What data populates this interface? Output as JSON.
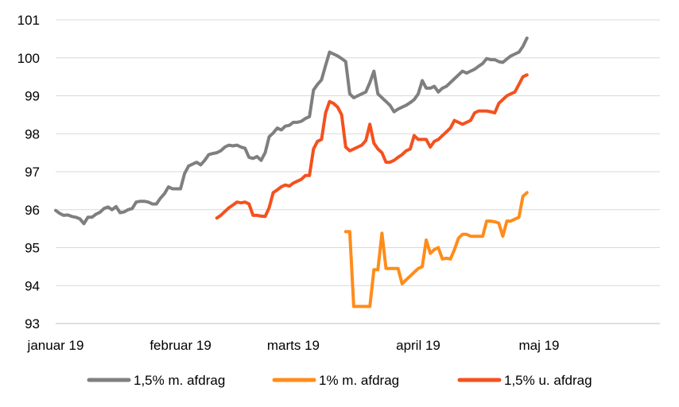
{
  "chart_data": {
    "type": "line",
    "title": "",
    "xlabel": "",
    "ylabel": "",
    "ylim": [
      93,
      101
    ],
    "yticks": [
      "93",
      "94",
      "95",
      "96",
      "97",
      "98",
      "99",
      "100",
      "101"
    ],
    "grid": true,
    "legend_position": "bottom",
    "x_categories": [
      {
        "label": "januar 19",
        "day": 0
      },
      {
        "label": "februar 19",
        "day": 31
      },
      {
        "label": "marts 19",
        "day": 59
      },
      {
        "label": "april 19",
        "day": 90
      },
      {
        "label": "maj 19",
        "day": 120
      }
    ],
    "xlim_days": [
      0,
      150
    ],
    "series": [
      {
        "name": "1,5% m. afdrag",
        "color": "#7f7f7f",
        "points": [
          [
            0,
            95.98
          ],
          [
            1,
            95.9
          ],
          [
            2,
            95.85
          ],
          [
            3,
            95.86
          ],
          [
            4,
            95.82
          ],
          [
            5,
            95.8
          ],
          [
            6,
            95.76
          ],
          [
            7,
            95.63
          ],
          [
            8,
            95.8
          ],
          [
            9,
            95.8
          ],
          [
            10,
            95.88
          ],
          [
            11,
            95.93
          ],
          [
            12,
            96.03
          ],
          [
            13,
            96.07
          ],
          [
            14,
            96.0
          ],
          [
            15,
            96.08
          ],
          [
            16,
            95.92
          ],
          [
            17,
            95.94
          ],
          [
            18,
            96.0
          ],
          [
            19,
            96.03
          ],
          [
            20,
            96.2
          ],
          [
            21,
            96.22
          ],
          [
            22,
            96.22
          ],
          [
            23,
            96.2
          ],
          [
            24,
            96.15
          ],
          [
            25,
            96.15
          ],
          [
            26,
            96.3
          ],
          [
            27,
            96.42
          ],
          [
            28,
            96.6
          ],
          [
            29,
            96.55
          ],
          [
            30,
            96.55
          ],
          [
            31,
            96.55
          ],
          [
            32,
            96.95
          ],
          [
            33,
            97.15
          ],
          [
            34,
            97.2
          ],
          [
            35,
            97.25
          ],
          [
            36,
            97.18
          ],
          [
            37,
            97.3
          ],
          [
            38,
            97.45
          ],
          [
            39,
            97.48
          ],
          [
            40,
            97.5
          ],
          [
            41,
            97.55
          ],
          [
            42,
            97.65
          ],
          [
            43,
            97.7
          ],
          [
            44,
            97.68
          ],
          [
            45,
            97.7
          ],
          [
            46,
            97.65
          ],
          [
            47,
            97.62
          ],
          [
            48,
            97.38
          ],
          [
            49,
            97.35
          ],
          [
            50,
            97.4
          ],
          [
            51,
            97.3
          ],
          [
            52,
            97.5
          ],
          [
            53,
            97.92
          ],
          [
            54,
            98.02
          ],
          [
            55,
            98.15
          ],
          [
            56,
            98.1
          ],
          [
            57,
            98.2
          ],
          [
            58,
            98.22
          ],
          [
            59,
            98.3
          ],
          [
            60,
            98.3
          ],
          [
            61,
            98.33
          ],
          [
            62,
            98.4
          ],
          [
            63,
            98.45
          ],
          [
            64,
            99.15
          ],
          [
            65,
            99.3
          ],
          [
            66,
            99.42
          ],
          [
            67,
            99.8
          ],
          [
            68,
            100.15
          ],
          [
            69,
            100.1
          ],
          [
            70,
            100.05
          ],
          [
            71,
            99.98
          ],
          [
            72,
            99.9
          ],
          [
            73,
            99.05
          ],
          [
            74,
            98.95
          ],
          [
            75,
            99.0
          ],
          [
            76,
            99.05
          ],
          [
            77,
            99.1
          ],
          [
            78,
            99.35
          ],
          [
            79,
            99.65
          ],
          [
            80,
            99.05
          ],
          [
            81,
            98.95
          ],
          [
            82,
            98.85
          ],
          [
            83,
            98.75
          ],
          [
            84,
            98.58
          ],
          [
            85,
            98.65
          ],
          [
            86,
            98.7
          ],
          [
            87,
            98.75
          ],
          [
            88,
            98.82
          ],
          [
            89,
            98.9
          ],
          [
            90,
            99.05
          ],
          [
            91,
            99.4
          ],
          [
            92,
            99.2
          ],
          [
            93,
            99.2
          ],
          [
            94,
            99.25
          ],
          [
            95,
            99.1
          ],
          [
            96,
            99.2
          ],
          [
            97,
            99.25
          ],
          [
            98,
            99.35
          ],
          [
            99,
            99.45
          ],
          [
            100,
            99.55
          ],
          [
            101,
            99.65
          ],
          [
            102,
            99.6
          ],
          [
            103,
            99.65
          ],
          [
            104,
            99.7
          ],
          [
            105,
            99.78
          ],
          [
            106,
            99.85
          ],
          [
            107,
            99.98
          ],
          [
            108,
            99.95
          ],
          [
            109,
            99.95
          ],
          [
            110,
            99.9
          ],
          [
            111,
            99.88
          ],
          [
            112,
            99.97
          ],
          [
            113,
            100.05
          ],
          [
            114,
            100.1
          ],
          [
            115,
            100.15
          ],
          [
            116,
            100.3
          ],
          [
            117,
            100.52
          ]
        ]
      },
      {
        "name": "1% m. afdrag",
        "color": "#ff8c1a",
        "points": [
          [
            72,
            95.42
          ],
          [
            73,
            95.42
          ],
          [
            74,
            93.45
          ],
          [
            75,
            93.45
          ],
          [
            76,
            93.45
          ],
          [
            77,
            93.45
          ],
          [
            78,
            93.45
          ],
          [
            79,
            94.42
          ],
          [
            80,
            94.42
          ],
          [
            81,
            95.38
          ],
          [
            82,
            94.45
          ],
          [
            83,
            94.45
          ],
          [
            84,
            94.45
          ],
          [
            85,
            94.45
          ],
          [
            86,
            94.05
          ],
          [
            87,
            94.15
          ],
          [
            88,
            94.25
          ],
          [
            89,
            94.35
          ],
          [
            90,
            94.45
          ],
          [
            91,
            94.5
          ],
          [
            92,
            95.2
          ],
          [
            93,
            94.85
          ],
          [
            94,
            94.95
          ],
          [
            95,
            95.0
          ],
          [
            96,
            94.7
          ],
          [
            97,
            94.72
          ],
          [
            98,
            94.7
          ],
          [
            99,
            94.95
          ],
          [
            100,
            95.25
          ],
          [
            101,
            95.35
          ],
          [
            102,
            95.35
          ],
          [
            103,
            95.3
          ],
          [
            104,
            95.3
          ],
          [
            105,
            95.3
          ],
          [
            106,
            95.3
          ],
          [
            107,
            95.7
          ],
          [
            108,
            95.7
          ],
          [
            109,
            95.68
          ],
          [
            110,
            95.65
          ],
          [
            111,
            95.3
          ],
          [
            112,
            95.7
          ],
          [
            113,
            95.7
          ],
          [
            114,
            95.75
          ],
          [
            115,
            95.8
          ],
          [
            116,
            96.35
          ],
          [
            117,
            96.45
          ]
        ]
      },
      {
        "name": "1,5% u. afdrag",
        "color": "#f4511e",
        "points": [
          [
            40,
            95.78
          ],
          [
            41,
            95.85
          ],
          [
            42,
            95.95
          ],
          [
            43,
            96.05
          ],
          [
            44,
            96.12
          ],
          [
            45,
            96.2
          ],
          [
            46,
            96.18
          ],
          [
            47,
            96.2
          ],
          [
            48,
            96.15
          ],
          [
            49,
            95.85
          ],
          [
            50,
            95.85
          ],
          [
            51,
            95.83
          ],
          [
            52,
            95.82
          ],
          [
            53,
            96.05
          ],
          [
            54,
            96.45
          ],
          [
            55,
            96.52
          ],
          [
            56,
            96.6
          ],
          [
            57,
            96.65
          ],
          [
            58,
            96.62
          ],
          [
            59,
            96.7
          ],
          [
            60,
            96.75
          ],
          [
            61,
            96.8
          ],
          [
            62,
            96.9
          ],
          [
            63,
            96.9
          ],
          [
            64,
            97.6
          ],
          [
            65,
            97.8
          ],
          [
            66,
            97.85
          ],
          [
            67,
            98.55
          ],
          [
            68,
            98.85
          ],
          [
            69,
            98.8
          ],
          [
            70,
            98.7
          ],
          [
            71,
            98.5
          ],
          [
            72,
            97.65
          ],
          [
            73,
            97.55
          ],
          [
            74,
            97.6
          ],
          [
            75,
            97.65
          ],
          [
            76,
            97.7
          ],
          [
            77,
            97.82
          ],
          [
            78,
            98.25
          ],
          [
            79,
            97.75
          ],
          [
            80,
            97.6
          ],
          [
            81,
            97.5
          ],
          [
            82,
            97.25
          ],
          [
            83,
            97.25
          ],
          [
            84,
            97.3
          ],
          [
            85,
            97.38
          ],
          [
            86,
            97.45
          ],
          [
            87,
            97.55
          ],
          [
            88,
            97.6
          ],
          [
            89,
            97.95
          ],
          [
            90,
            97.85
          ],
          [
            91,
            97.85
          ],
          [
            92,
            97.85
          ],
          [
            93,
            97.65
          ],
          [
            94,
            97.8
          ],
          [
            95,
            97.85
          ],
          [
            96,
            97.95
          ],
          [
            97,
            98.05
          ],
          [
            98,
            98.15
          ],
          [
            99,
            98.35
          ],
          [
            100,
            98.3
          ],
          [
            101,
            98.25
          ],
          [
            102,
            98.3
          ],
          [
            103,
            98.35
          ],
          [
            104,
            98.55
          ],
          [
            105,
            98.6
          ],
          [
            106,
            98.6
          ],
          [
            107,
            98.6
          ],
          [
            108,
            98.58
          ],
          [
            109,
            98.55
          ],
          [
            110,
            98.8
          ],
          [
            111,
            98.9
          ],
          [
            112,
            99.0
          ],
          [
            113,
            99.05
          ],
          [
            114,
            99.1
          ],
          [
            115,
            99.3
          ],
          [
            116,
            99.5
          ],
          [
            117,
            99.55
          ]
        ]
      }
    ]
  }
}
